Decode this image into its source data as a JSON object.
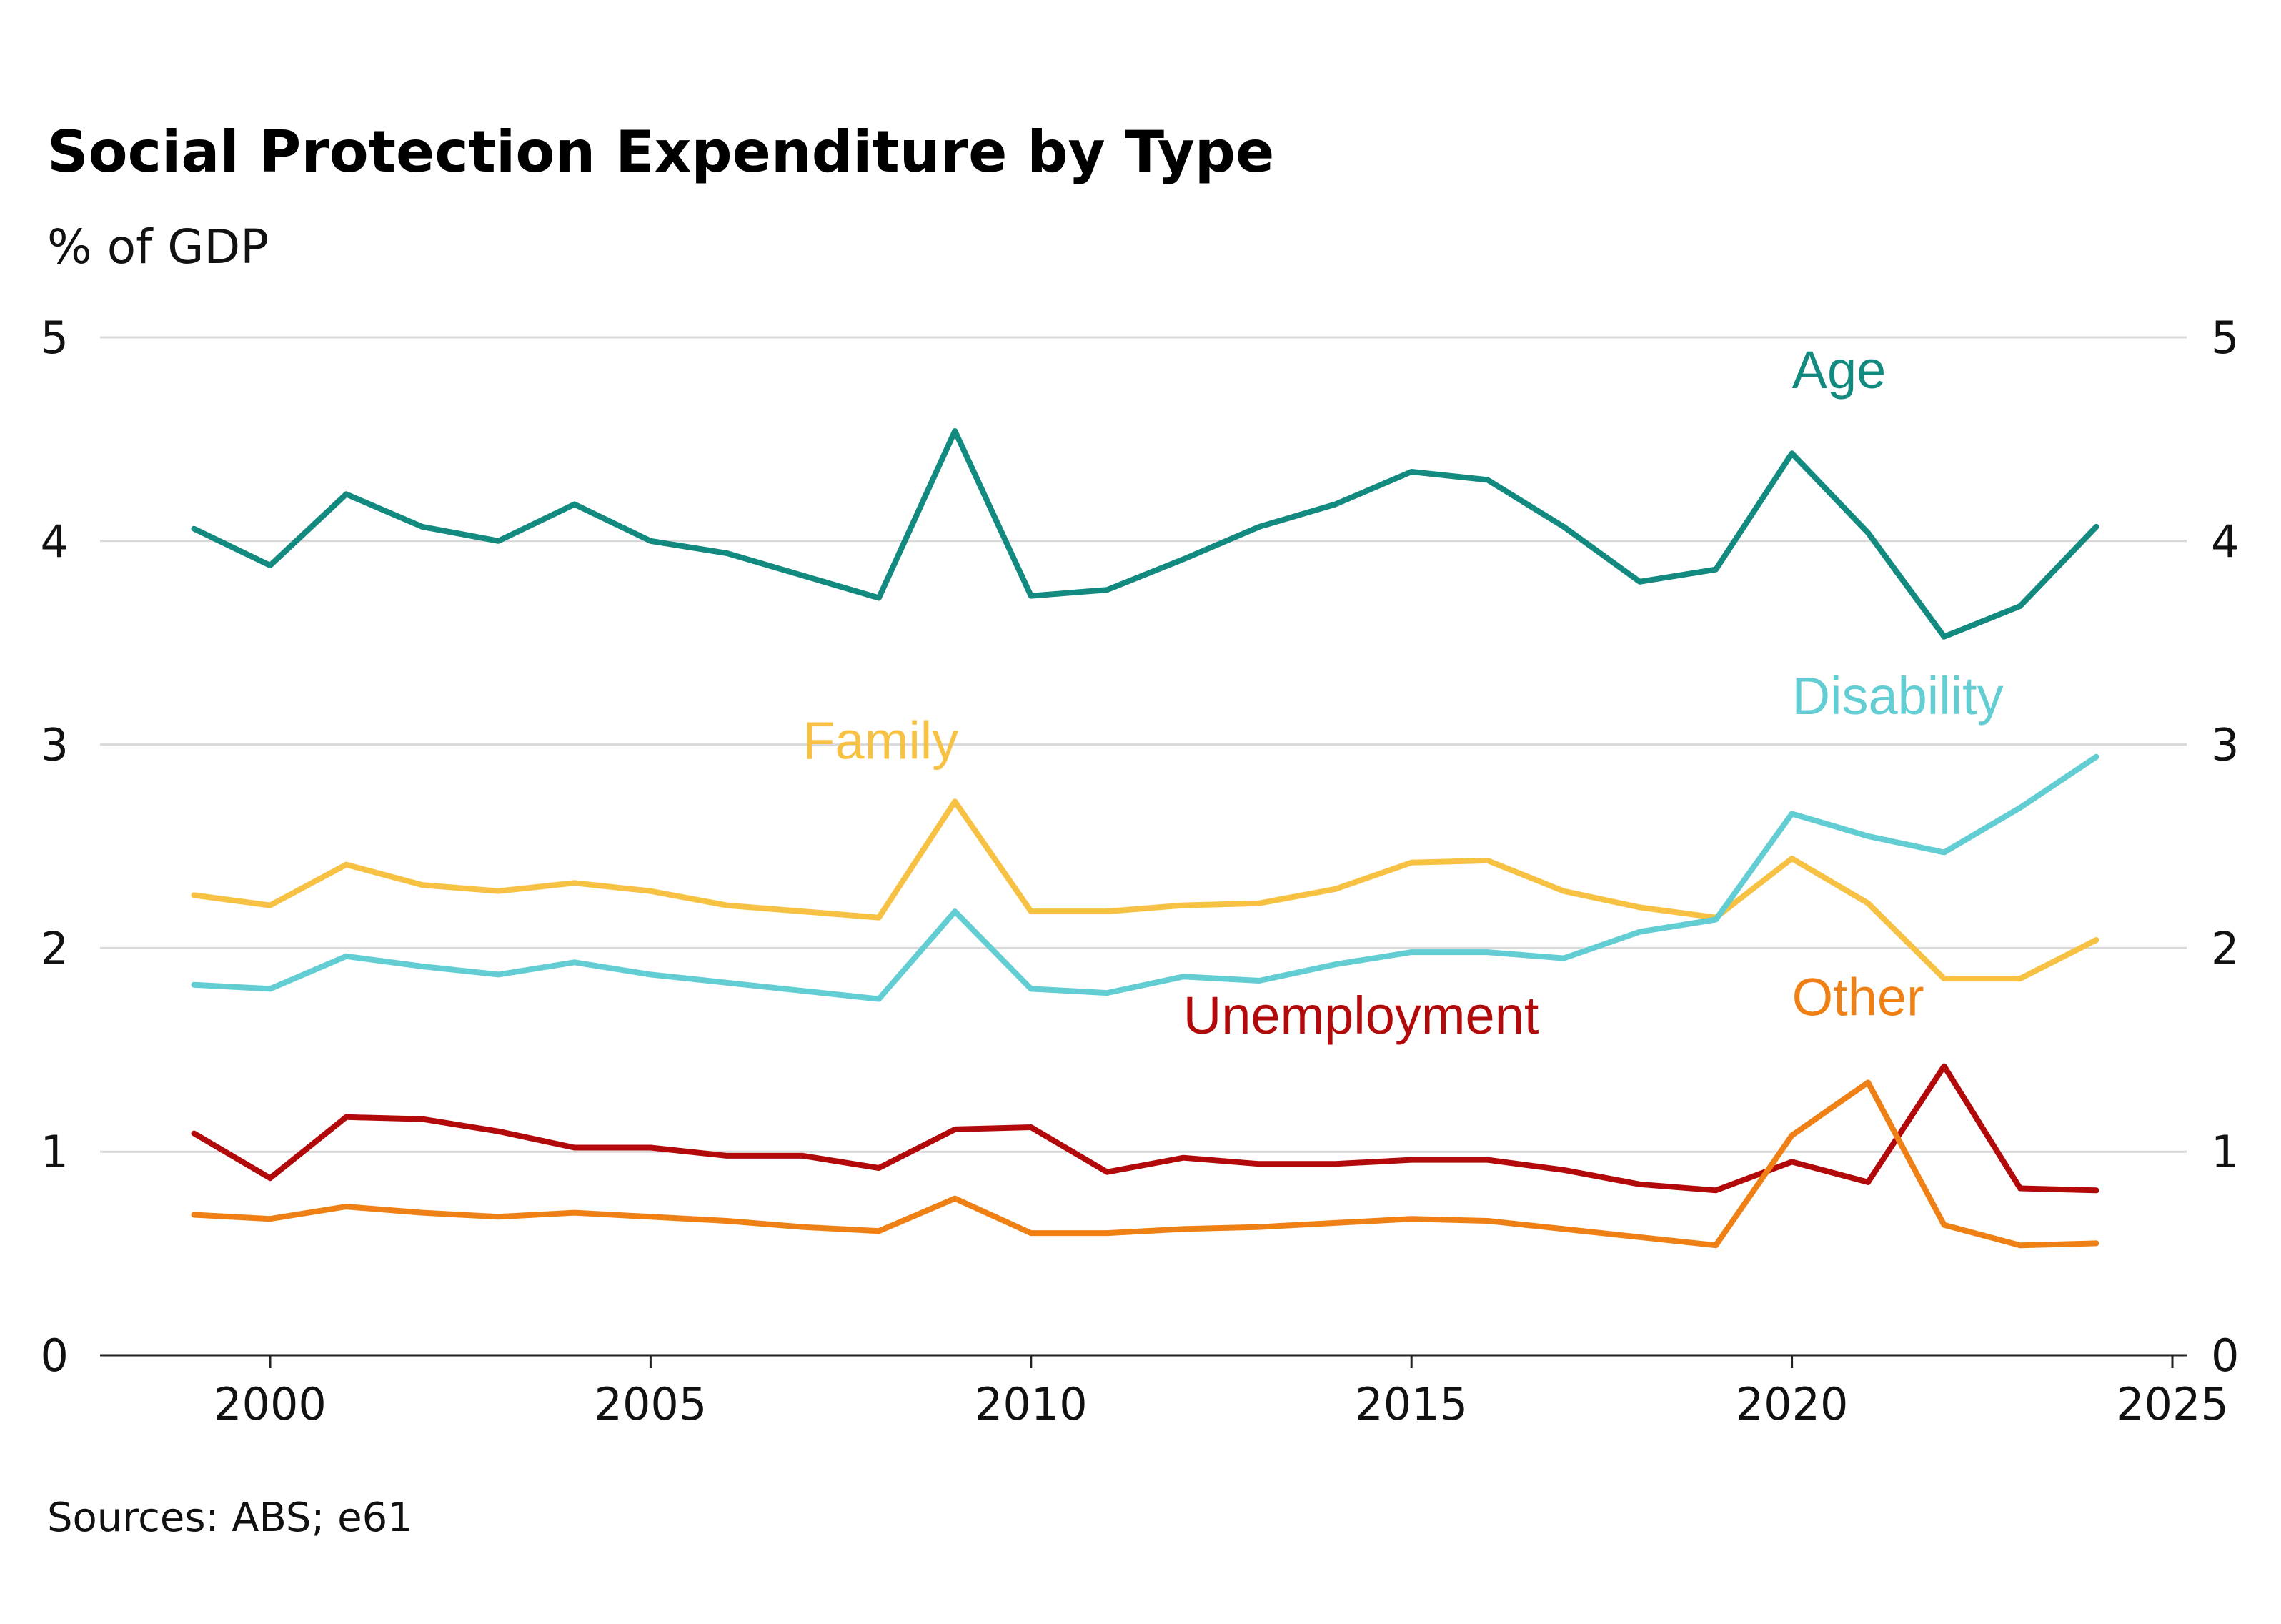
{
  "title": "Social Protection Expenditure by Type",
  "subtitle": "% of GDP",
  "source": "Sources: ABS; e61",
  "chart_data": {
    "type": "line",
    "title": "Social Protection Expenditure by Type",
    "ylabel": "% of GDP",
    "xlabel": "",
    "xlim": [
      1998,
      2025
    ],
    "ylim": [
      0,
      5
    ],
    "x_ticks": [
      2000,
      2005,
      2010,
      2015,
      2020,
      2025
    ],
    "y_ticks": [
      0,
      1,
      2,
      3,
      4,
      5
    ],
    "grid": "horizontal",
    "legend": "inline labels",
    "x": [
      1999,
      2000,
      2001,
      2002,
      2003,
      2004,
      2005,
      2006,
      2007,
      2008,
      2009,
      2010,
      2011,
      2012,
      2013,
      2014,
      2015,
      2016,
      2017,
      2018,
      2019,
      2020,
      2021,
      2022,
      2023,
      2024
    ],
    "series": [
      {
        "name": "Age",
        "color": "#138a80",
        "label_at": [
          2020,
          4.75
        ],
        "values": [
          4.06,
          3.88,
          4.23,
          4.07,
          4.0,
          4.18,
          4.0,
          3.94,
          3.83,
          3.72,
          4.54,
          3.73,
          3.76,
          3.91,
          4.07,
          4.18,
          4.34,
          4.3,
          4.07,
          3.8,
          3.86,
          4.43,
          4.04,
          3.53,
          3.68,
          4.07
        ]
      },
      {
        "name": "Family",
        "color": "#f7c244",
        "label_at": [
          2007,
          2.93
        ],
        "values": [
          2.26,
          2.21,
          2.41,
          2.31,
          2.28,
          2.32,
          2.28,
          2.21,
          2.18,
          2.15,
          2.72,
          2.18,
          2.18,
          2.21,
          2.22,
          2.29,
          2.42,
          2.43,
          2.28,
          2.2,
          2.15,
          2.44,
          2.22,
          1.85,
          1.85,
          2.04
        ]
      },
      {
        "name": "Disability",
        "color": "#62cdd3",
        "label_at": [
          2020,
          3.15
        ],
        "values": [
          1.82,
          1.8,
          1.96,
          1.91,
          1.87,
          1.93,
          1.87,
          1.83,
          1.79,
          1.75,
          2.18,
          1.8,
          1.78,
          1.86,
          1.84,
          1.92,
          1.98,
          1.98,
          1.95,
          2.08,
          2.14,
          2.66,
          2.55,
          2.47,
          2.69,
          2.94
        ]
      },
      {
        "name": "Unemployment",
        "color": "#b20a0a",
        "label_at": [
          2012,
          1.58
        ],
        "values": [
          1.09,
          0.87,
          1.17,
          1.16,
          1.1,
          1.02,
          1.02,
          0.98,
          0.98,
          0.92,
          1.11,
          1.12,
          0.9,
          0.97,
          0.94,
          0.94,
          0.96,
          0.96,
          0.91,
          0.84,
          0.81,
          0.95,
          0.85,
          1.42,
          0.82,
          0.81
        ]
      },
      {
        "name": "Other",
        "color": "#ef8015",
        "label_at": [
          2020,
          1.67
        ],
        "values": [
          0.69,
          0.67,
          0.73,
          0.7,
          0.68,
          0.7,
          0.68,
          0.66,
          0.63,
          0.61,
          0.77,
          0.6,
          0.6,
          0.62,
          0.63,
          0.65,
          0.67,
          0.66,
          0.62,
          0.58,
          0.54,
          1.08,
          1.34,
          0.64,
          0.54,
          0.55
        ]
      }
    ]
  }
}
